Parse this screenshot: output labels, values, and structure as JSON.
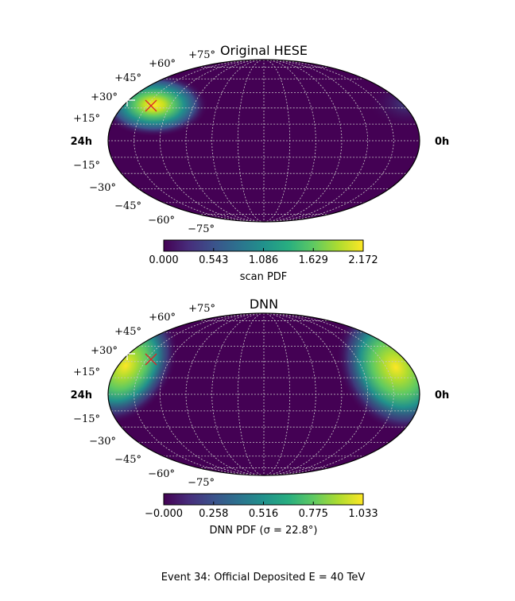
{
  "chart_data": [
    {
      "type": "heatmap",
      "projection": "mollweide",
      "title": "Original HESE",
      "dec_labels": [
        "+75°",
        "+60°",
        "+45°",
        "+30°",
        "+15°",
        "−15°",
        "−30°",
        "−45°",
        "−60°",
        "−75°"
      ],
      "ra_left_label": "24h",
      "ra_right_label": "0h",
      "grid": true,
      "colormap": "viridis",
      "colorbar": {
        "label": "scan PDF",
        "ticks": [
          "0.000",
          "0.543",
          "1.086",
          "1.629",
          "2.172"
        ],
        "range": [
          0.0,
          2.172
        ]
      },
      "hotspot": {
        "ra_hours": 21.5,
        "dec_deg": 23
      },
      "true_direction": {
        "ra_hours": 21.5,
        "dec_deg": 23,
        "marker": "x"
      },
      "secondary_marker": {
        "ra_hours": 23.2,
        "dec_deg": 24,
        "marker": "+"
      },
      "colors": {
        "low": "#440154",
        "mid": "#21918c",
        "high": "#fde725",
        "x_marker": "#d62728",
        "grid": "#c8c8c8"
      }
    },
    {
      "type": "heatmap",
      "projection": "mollweide",
      "title": "DNN",
      "dec_labels": [
        "+75°",
        "+60°",
        "+45°",
        "+30°",
        "+15°",
        "−15°",
        "−30°",
        "−45°",
        "−60°",
        "−75°"
      ],
      "ra_left_label": "24h",
      "ra_right_label": "0h",
      "grid": true,
      "colormap": "viridis",
      "colorbar": {
        "label": "DNN PDF (σ = 22.8°)",
        "ticks": [
          "−0.000",
          "0.258",
          "0.516",
          "0.775",
          "1.033"
        ],
        "range": [
          0.0,
          1.033
        ]
      },
      "hotspot": {
        "ra_hours": 22.5,
        "dec_deg": 28,
        "sigma_deg": 22.8
      },
      "true_direction": {
        "ra_hours": 21.5,
        "dec_deg": 23,
        "marker": "x"
      },
      "secondary_marker": {
        "ra_hours": 23.2,
        "dec_deg": 24,
        "marker": "+"
      },
      "colors": {
        "low": "#440154",
        "mid": "#21918c",
        "high": "#fde725",
        "x_marker": "#d62728",
        "grid": "#c8c8c8"
      }
    }
  ],
  "caption": "Event 34:  Official Deposited E = 40 TeV"
}
